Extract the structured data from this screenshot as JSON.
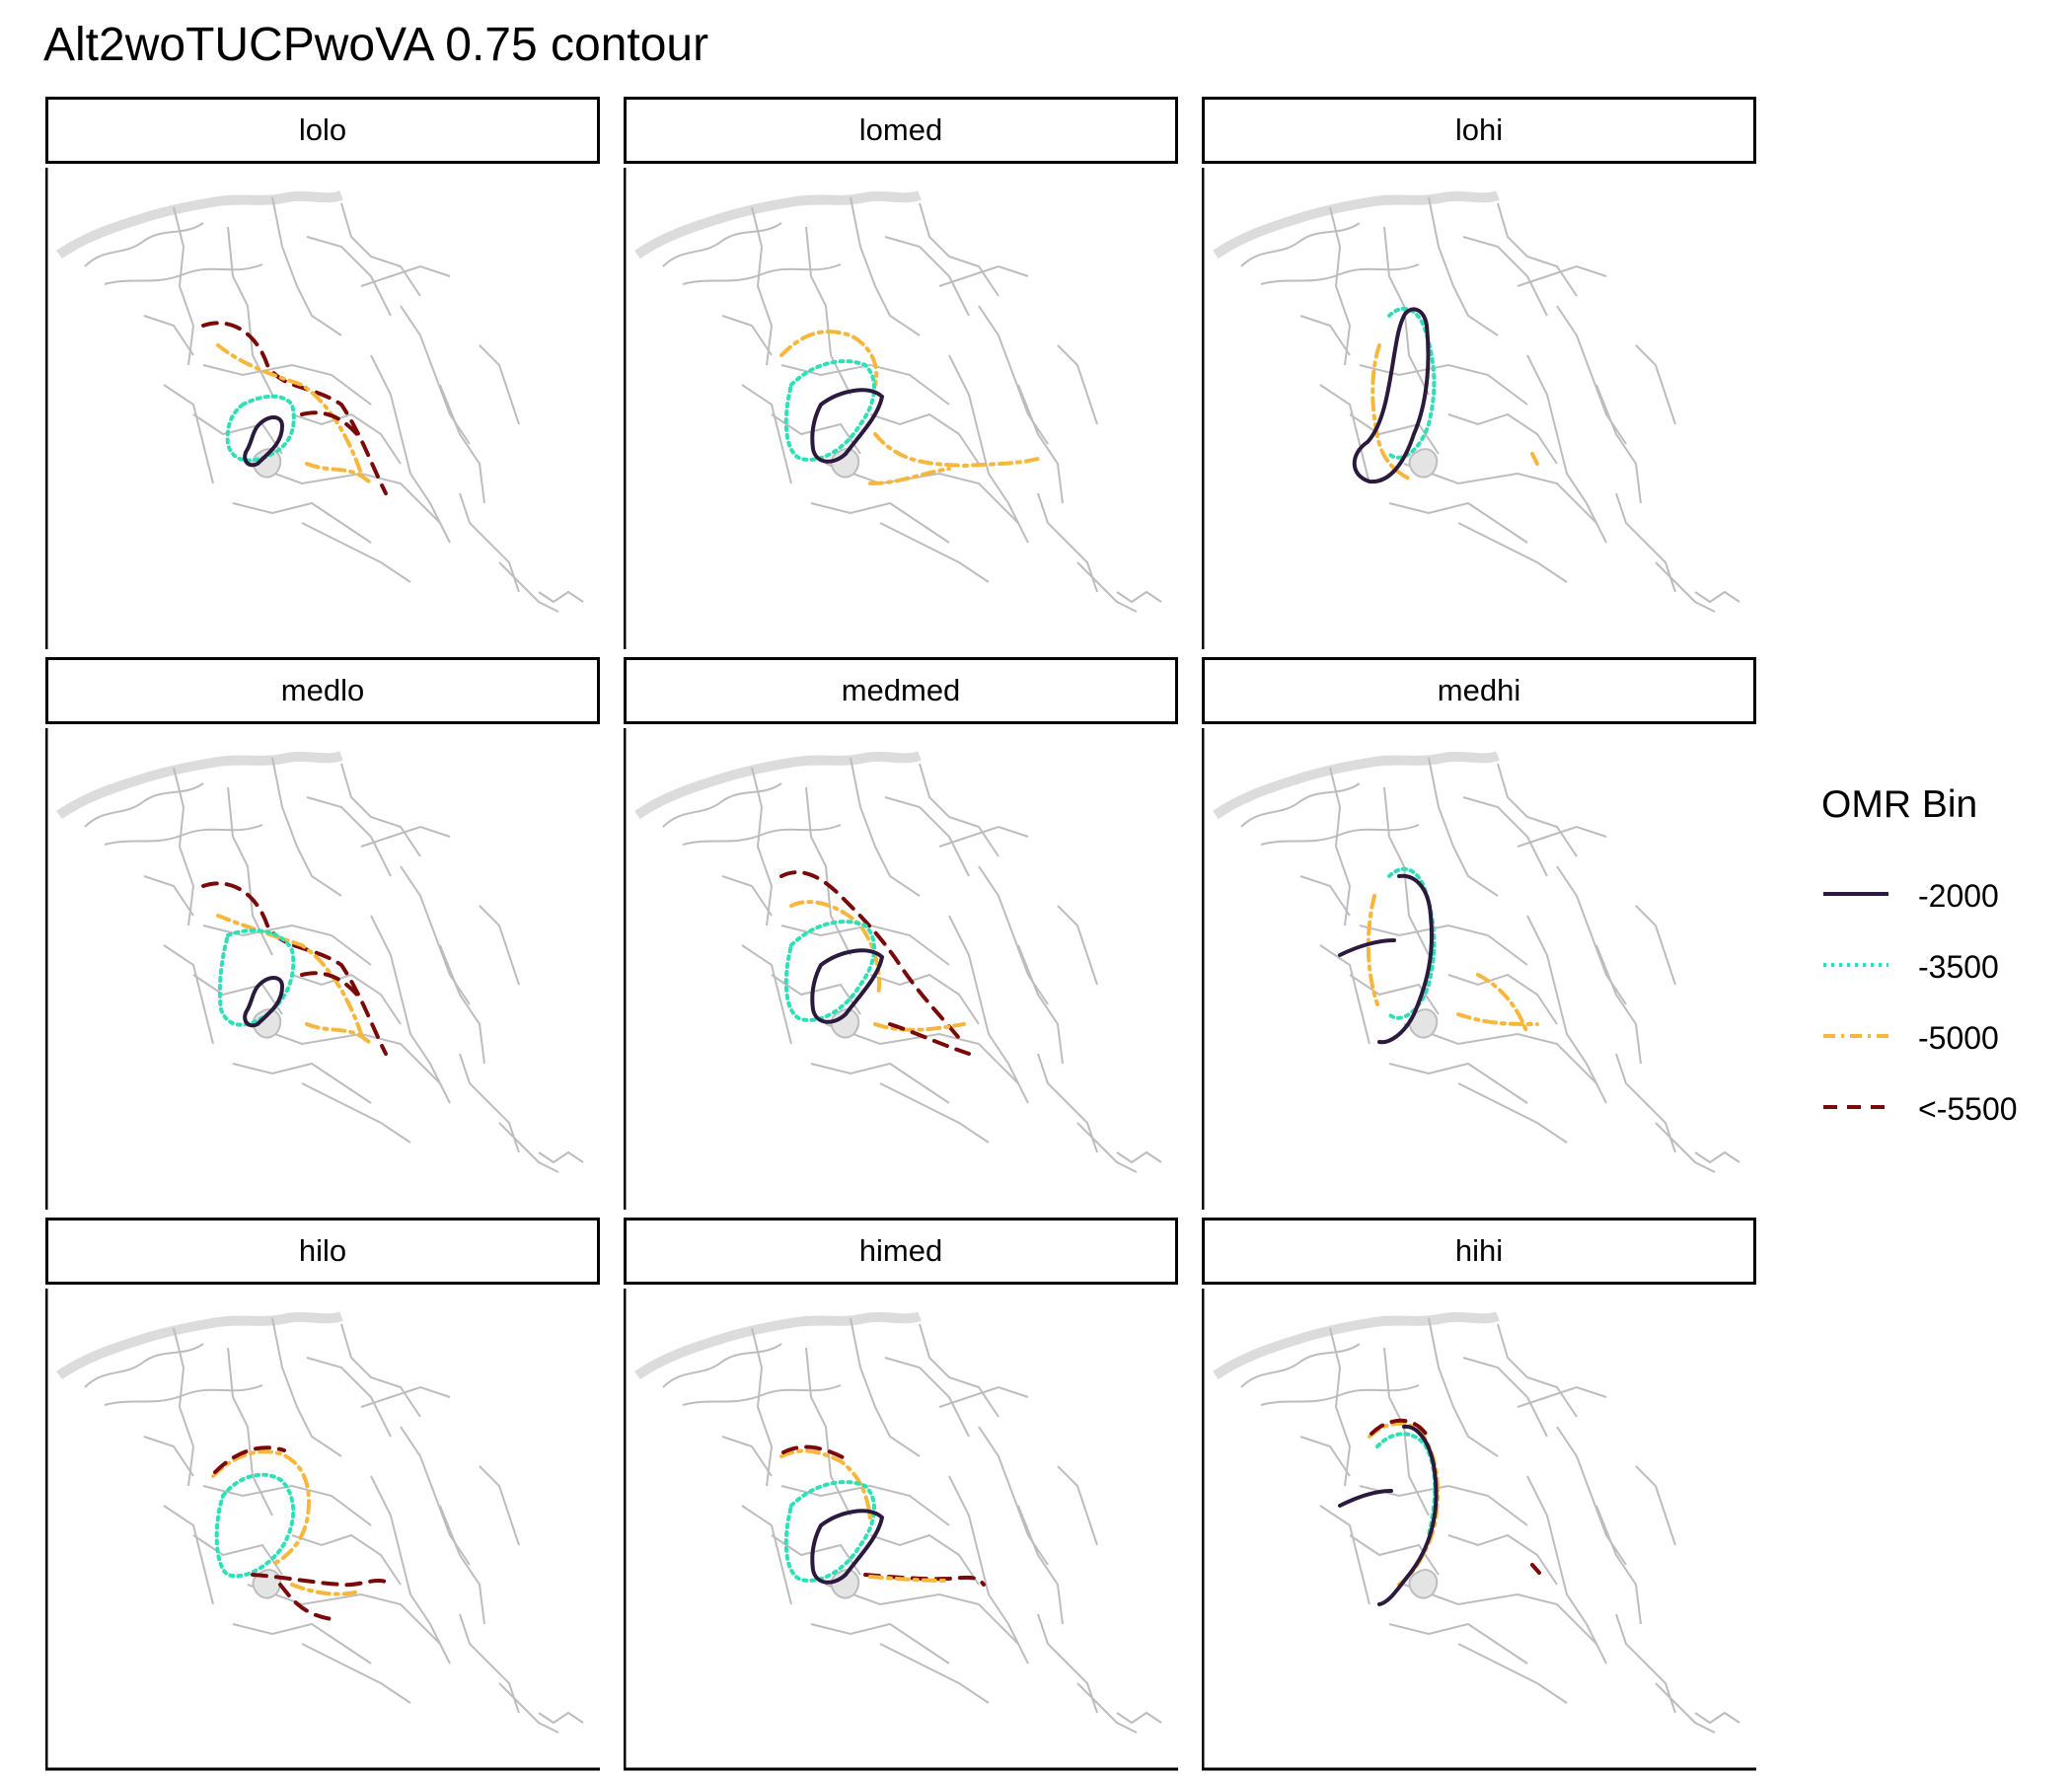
{
  "title": "Alt2woTUCPwoVA 0.75 contour",
  "colors": {
    "basemap": "#bdbdbd",
    "basemap_river": "#dcdcdc",
    "frame": "#000000"
  },
  "panels": [
    {
      "label": "lolo"
    },
    {
      "label": "lomed"
    },
    {
      "label": "lohi"
    },
    {
      "label": "medlo"
    },
    {
      "label": "medmed"
    },
    {
      "label": "medhi"
    },
    {
      "label": "hilo"
    },
    {
      "label": "himed"
    },
    {
      "label": "hihi"
    }
  ],
  "legend": {
    "title": "OMR Bin",
    "items": [
      {
        "label": "-2000",
        "color": "#2b1a3d",
        "dash": "solid"
      },
      {
        "label": "-3500",
        "color": "#2fe0b6",
        "dash": "dotted"
      },
      {
        "label": "-5000",
        "color": "#f6b73c",
        "dash": "dashed"
      },
      {
        "label": "<-5500",
        "color": "#7a0a0a",
        "dash": "longdash"
      }
    ]
  }
}
